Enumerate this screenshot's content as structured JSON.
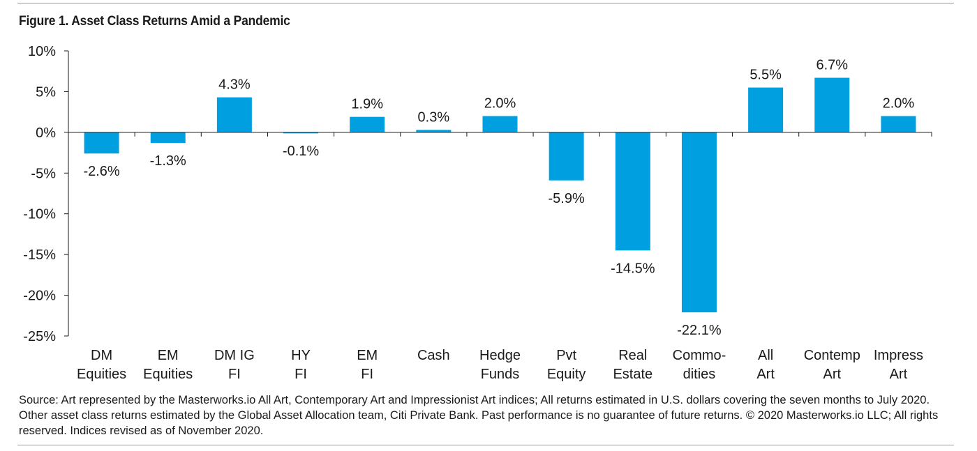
{
  "title": "Figure 1. Asset Class Returns Amid a Pandemic",
  "source": "Source: Art represented by the Masterworks.io All Art, Contemporary Art and Impressionist Art indices; All returns estimated in U.S. dollars covering the seven months to July 2020. Other asset class returns estimated by the Global Asset Allocation team, Citi Private Bank. Past performance is no guarantee of future returns. © 2020 Masterworks.io LLC; All rights reserved. Indices revised as of November 2020.",
  "colors": {
    "bar": "#00a0e0",
    "axis": "#1a1a1a",
    "rule": "#9a9a9a"
  },
  "chart_data": {
    "type": "bar",
    "title": "Figure 1. Asset Class Returns Amid a Pandemic",
    "xlabel": "",
    "ylabel": "",
    "ylim": [
      -25,
      10
    ],
    "yticks": [
      10,
      5,
      0,
      -5,
      -10,
      -15,
      -20,
      -25
    ],
    "ytick_labels": [
      "10%",
      "5%",
      "0%",
      "-5%",
      "-10%",
      "-15%",
      "-20%",
      "-25%"
    ],
    "grid": false,
    "legend": "none",
    "categories": [
      [
        "DM",
        "Equities"
      ],
      [
        "EM",
        "Equities"
      ],
      [
        "DM IG",
        "FI"
      ],
      [
        "HY",
        "FI"
      ],
      [
        "EM",
        "FI"
      ],
      [
        "Cash"
      ],
      [
        "Hedge",
        "Funds"
      ],
      [
        "Pvt",
        "Equity"
      ],
      [
        "Real",
        "Estate"
      ],
      [
        "Commo-",
        "dities"
      ],
      [
        "All",
        "Art"
      ],
      [
        "Contemp",
        "Art"
      ],
      [
        "Impress",
        "Art"
      ]
    ],
    "values": [
      -2.6,
      -1.3,
      4.3,
      -0.1,
      1.9,
      0.3,
      2.0,
      -5.9,
      -14.5,
      -22.1,
      5.5,
      6.7,
      2.0
    ],
    "data_labels": [
      "-2.6%",
      "-1.3%",
      "4.3%",
      "-0.1%",
      "1.9%",
      "0.3%",
      "2.0%",
      "-5.9%",
      "-14.5%",
      "-22.1%",
      "5.5%",
      "6.7%",
      "2.0%"
    ]
  }
}
